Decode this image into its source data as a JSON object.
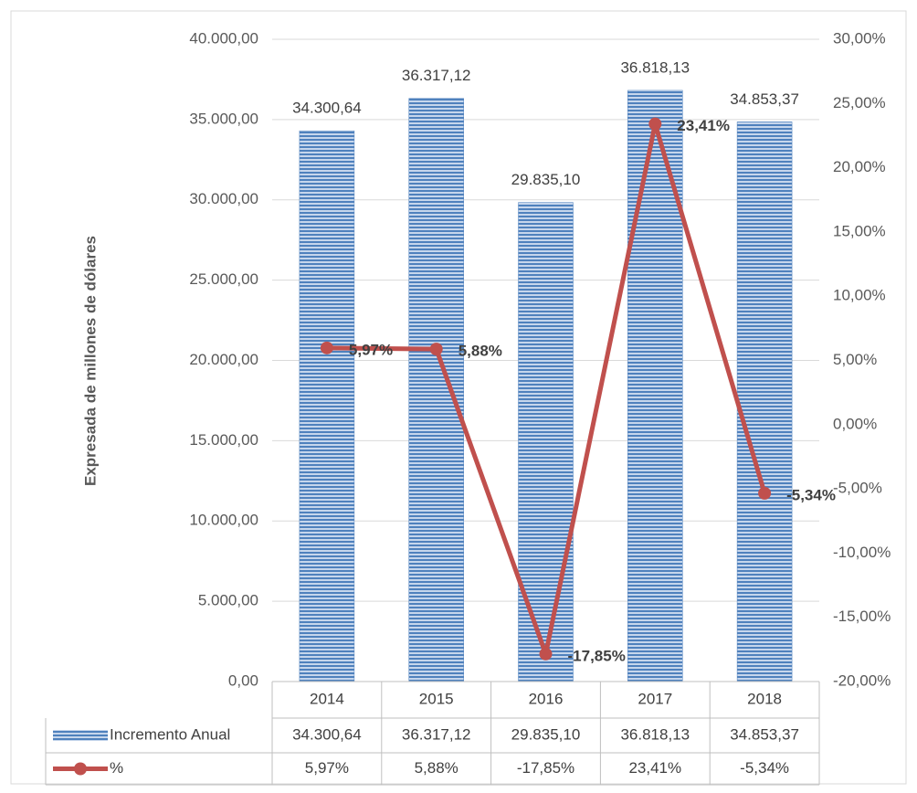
{
  "chart_data": {
    "type": "combo",
    "y_label": "Expresada de millones de dólares",
    "categories": [
      "2014",
      "2015",
      "2016",
      "2017",
      "2018"
    ],
    "series": [
      {
        "name": "Incremento Anual",
        "type": "bar",
        "color": "#4f81bd",
        "axis": "y",
        "values": [
          34300.64,
          36317.12,
          29835.1,
          36818.13,
          34853.37
        ],
        "value_labels": [
          "34.300,64",
          "36.317,12",
          "29.835,10",
          "36.818,13",
          "34.853,37"
        ]
      },
      {
        "name": "%",
        "type": "line",
        "color": "#c0504d",
        "axis": "y2",
        "values": [
          5.97,
          5.88,
          -17.85,
          23.41,
          -5.34
        ],
        "value_labels": [
          "5,97%",
          "5,88%",
          "-17,85%",
          "23,41%",
          "-5,34%"
        ]
      }
    ],
    "ylim": [
      0,
      40000
    ],
    "yticks": [
      {
        "value": 0,
        "label": "0,00"
      },
      {
        "value": 5000,
        "label": "5.000,00"
      },
      {
        "value": 10000,
        "label": "10.000,00"
      },
      {
        "value": 15000,
        "label": "15.000,00"
      },
      {
        "value": 20000,
        "label": "20.000,00"
      },
      {
        "value": 25000,
        "label": "25.000,00"
      },
      {
        "value": 30000,
        "label": "30.000,00"
      },
      {
        "value": 35000,
        "label": "35.000,00"
      },
      {
        "value": 40000,
        "label": "40.000,00"
      }
    ],
    "y2lim": [
      -20,
      30
    ],
    "y2ticks": [
      {
        "value": -20,
        "label": "-20,00%"
      },
      {
        "value": -15,
        "label": "-15,00%"
      },
      {
        "value": -10,
        "label": "-10,00%"
      },
      {
        "value": -5,
        "label": "-5,00%"
      },
      {
        "value": 0,
        "label": "0,00%"
      },
      {
        "value": 5,
        "label": "5,00%"
      },
      {
        "value": 10,
        "label": "10,00%"
      },
      {
        "value": 15,
        "label": "15,00%"
      },
      {
        "value": 20,
        "label": "20,00%"
      },
      {
        "value": 25,
        "label": "25,00%"
      },
      {
        "value": 30,
        "label": "30,00%"
      }
    ],
    "grid": true,
    "data_table": true
  }
}
